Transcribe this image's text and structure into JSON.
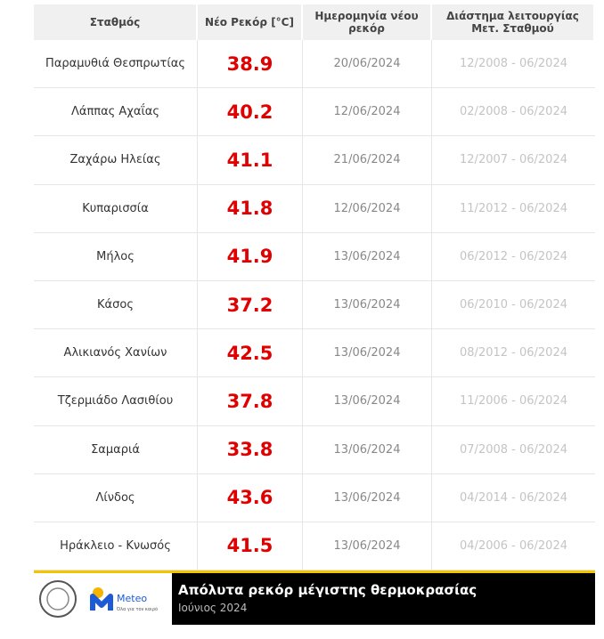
{
  "table": {
    "header": [
      "Σταθμός",
      "Νέο Ρεκόρ [°C]",
      "Ημερομηνία νέου ρεκόρ",
      "Διάστημα λειτουργίας Μετ. Σταθμού"
    ],
    "rows": [
      [
        "Παραμυθιά Θεσπρωτίας",
        "38.9",
        "20/06/2024",
        "12/2008 - 06/2024"
      ],
      [
        "Λάππας Αχαΐας",
        "40.2",
        "12/06/2024",
        "02/2008 - 06/2024"
      ],
      [
        "Ζαχάρω Ηλείας",
        "41.1",
        "21/06/2024",
        "12/2007 - 06/2024"
      ],
      [
        "Κυπαρισσία",
        "41.8",
        "12/06/2024",
        "11/2012 - 06/2024"
      ],
      [
        "Μήλος",
        "41.9",
        "13/06/2024",
        "06/2012 - 06/2024"
      ],
      [
        "Κάσος",
        "37.2",
        "13/06/2024",
        "06/2010 - 06/2024"
      ],
      [
        "Αλικιανός Χανίων",
        "42.5",
        "13/06/2024",
        "08/2012 - 06/2024"
      ],
      [
        "Τζερμιάδο Λασιθίου",
        "37.8",
        "13/06/2024",
        "11/2006 - 06/2024"
      ],
      [
        "Σαμαριά",
        "33.8",
        "13/06/2024",
        "07/2008 - 06/2024"
      ],
      [
        "Λίνδος",
        "43.6",
        "13/06/2024",
        "04/2014 - 06/2024"
      ],
      [
        "Ηράκλειο - Κνωσός",
        "41.5",
        "13/06/2024",
        "04/2006 - 06/2024"
      ]
    ]
  },
  "footer": {
    "logo": "Meteo",
    "tagline": "Όλα για τον καιρό",
    "title": "Απόλυτα ρεκόρ μέγιστης θερμοκρασίας",
    "subtitle": "Ιούνιος 2024"
  }
}
